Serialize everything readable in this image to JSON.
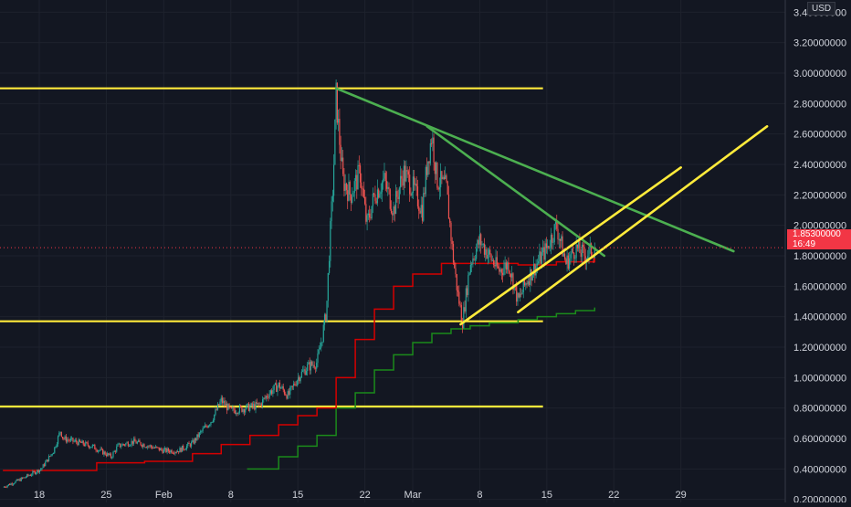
{
  "chart_data": {
    "type": "candlestick",
    "currency": "USD",
    "last_price": "1.85300000",
    "countdown": "16:49",
    "ylim": [
      0.18,
      3.48
    ],
    "y_tick_labels": [
      "0.20000000",
      "0.40000000",
      "0.60000000",
      "0.80000000",
      "1.00000000",
      "1.20000000",
      "1.40000000",
      "1.60000000",
      "1.80000000",
      "2.00000000",
      "2.20000000",
      "2.40000000",
      "2.60000000",
      "2.80000000",
      "3.00000000",
      "3.20000000",
      "3.40000000"
    ],
    "x_tick_labels": [
      "18",
      "25",
      "Feb",
      "8",
      "15",
      "22",
      "Mar",
      "8",
      "15",
      "22",
      "29"
    ],
    "grid": true,
    "horizontal_levels": [
      2.9,
      1.37,
      0.81
    ],
    "colors": {
      "background": "#131722",
      "grid": "#1e222d",
      "up": "#26a69a",
      "down": "#ef5350",
      "level": "#ffeb3b",
      "trend": "#4caf50",
      "ma_fast": "#d50000",
      "ma_slow": "#1b8a1b",
      "price_badge": "#f23645"
    },
    "price_path": [
      [
        0.3,
        0.28
      ],
      [
        2.1,
        0.33
      ],
      [
        4.3,
        0.4
      ],
      [
        5.6,
        0.52
      ],
      [
        6.3,
        0.65
      ],
      [
        6.6,
        0.6
      ],
      [
        7.8,
        0.58
      ],
      [
        9.6,
        0.55
      ],
      [
        11.6,
        0.48
      ],
      [
        12.3,
        0.55
      ],
      [
        13.9,
        0.58
      ],
      [
        15.6,
        0.55
      ],
      [
        17.1,
        0.52
      ],
      [
        18.6,
        0.52
      ],
      [
        20.1,
        0.57
      ],
      [
        21.1,
        0.65
      ],
      [
        22.1,
        0.72
      ],
      [
        23.1,
        0.85
      ],
      [
        24.1,
        0.78
      ],
      [
        25.6,
        0.8
      ],
      [
        27.1,
        0.82
      ],
      [
        28.1,
        0.9
      ],
      [
        29.1,
        0.95
      ],
      [
        30.1,
        0.88
      ],
      [
        31.1,
        1.0
      ],
      [
        32.1,
        1.07
      ],
      [
        33.1,
        1.1
      ],
      [
        33.6,
        1.25
      ],
      [
        34.1,
        1.45
      ],
      [
        34.4,
        1.85
      ],
      [
        34.8,
        2.3
      ],
      [
        35.1,
        2.85
      ],
      [
        35.4,
        2.6
      ],
      [
        35.8,
        2.3
      ],
      [
        36.6,
        2.2
      ],
      [
        37.6,
        2.35
      ],
      [
        38.3,
        2.0
      ],
      [
        39.1,
        2.2
      ],
      [
        40.1,
        2.3
      ],
      [
        41.1,
        2.1
      ],
      [
        42.1,
        2.35
      ],
      [
        43.1,
        2.25
      ],
      [
        44.1,
        2.1
      ],
      [
        44.6,
        2.4
      ],
      [
        45.1,
        2.6
      ],
      [
        45.6,
        2.3
      ],
      [
        46.6,
        2.25
      ],
      [
        47.3,
        1.8
      ],
      [
        47.8,
        1.55
      ],
      [
        48.3,
        1.37
      ],
      [
        49.1,
        1.75
      ],
      [
        50.1,
        1.9
      ],
      [
        51.1,
        1.8
      ],
      [
        52.1,
        1.7
      ],
      [
        53.1,
        1.75
      ],
      [
        54.1,
        1.5
      ],
      [
        55.1,
        1.65
      ],
      [
        56.1,
        1.75
      ],
      [
        57.1,
        1.85
      ],
      [
        58.1,
        2.0
      ],
      [
        59.1,
        1.75
      ],
      [
        60.1,
        1.85
      ],
      [
        61.1,
        1.8
      ],
      [
        62.1,
        1.85
      ]
    ],
    "ma_fast": [
      [
        0.3,
        0.39
      ],
      [
        5.1,
        0.39
      ],
      [
        10.1,
        0.44
      ],
      [
        15.1,
        0.45
      ],
      [
        20.1,
        0.5
      ],
      [
        23.1,
        0.56
      ],
      [
        26.1,
        0.62
      ],
      [
        29.1,
        0.69
      ],
      [
        31.1,
        0.75
      ],
      [
        33.1,
        0.8
      ],
      [
        35.1,
        1.0
      ],
      [
        37.1,
        1.25
      ],
      [
        39.1,
        1.45
      ],
      [
        41.1,
        1.6
      ],
      [
        43.1,
        1.68
      ],
      [
        46.1,
        1.75
      ],
      [
        48.1,
        1.75
      ],
      [
        50.1,
        1.75
      ],
      [
        54.1,
        1.74
      ],
      [
        58.1,
        1.76
      ],
      [
        62.1,
        1.79
      ]
    ],
    "ma_slow": [
      [
        25.8,
        0.4
      ],
      [
        29.1,
        0.48
      ],
      [
        31.1,
        0.55
      ],
      [
        33.1,
        0.62
      ],
      [
        35.1,
        0.8
      ],
      [
        37.1,
        0.9
      ],
      [
        39.1,
        1.05
      ],
      [
        41.1,
        1.15
      ],
      [
        43.1,
        1.23
      ],
      [
        45.1,
        1.29
      ],
      [
        47.1,
        1.32
      ],
      [
        49.1,
        1.34
      ],
      [
        51.1,
        1.36
      ],
      [
        54.1,
        1.38
      ],
      [
        56.1,
        1.4
      ],
      [
        58.1,
        1.42
      ],
      [
        60.1,
        1.44
      ],
      [
        62.1,
        1.46
      ]
    ],
    "trendlines": [
      {
        "color": "trend",
        "points": [
          [
            35.1,
            2.9
          ],
          [
            76.6,
            1.83
          ]
        ]
      },
      {
        "color": "trend",
        "points": [
          [
            44.6,
            2.65
          ],
          [
            63.1,
            1.8
          ]
        ]
      },
      {
        "color": "level",
        "points": [
          [
            48.1,
            1.35
          ],
          [
            71.1,
            2.38
          ]
        ]
      },
      {
        "color": "level",
        "points": [
          [
            54.1,
            1.43
          ],
          [
            80.1,
            2.65
          ]
        ]
      }
    ]
  }
}
